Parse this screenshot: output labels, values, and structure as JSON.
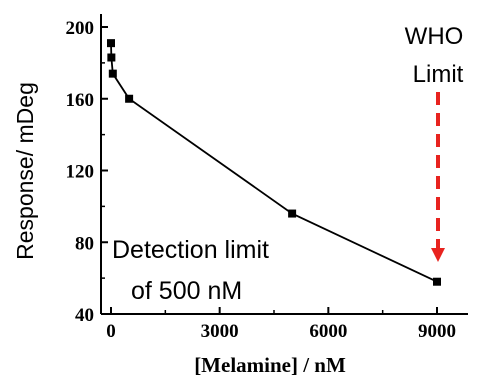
{
  "chart_data": {
    "type": "line",
    "xlabel": "[Melamine] / nM",
    "ylabel": "Response/ mDeg",
    "xlim": [
      -200,
      10000
    ],
    "ylim": [
      40,
      210
    ],
    "xticks": [
      0,
      3000,
      6000,
      9000
    ],
    "yticks": [
      40,
      80,
      120,
      160,
      200
    ],
    "xtick_labels": [
      "0",
      "3000",
      "6000",
      "9000"
    ],
    "ytick_labels": [
      "40",
      "80",
      "120",
      "160",
      "200"
    ],
    "series": [
      {
        "marker": "square",
        "color": "#000000",
        "x": [
          0,
          10,
          50,
          500,
          5000,
          9000
        ],
        "y": [
          191,
          183,
          174,
          160,
          96,
          58
        ]
      }
    ],
    "annotations": {
      "detection_line1": "Detection limit",
      "detection_line2": "of 500 nM",
      "who_line1": "WHO",
      "who_line2": "Limit",
      "arrow_color": "#e8231f"
    }
  }
}
